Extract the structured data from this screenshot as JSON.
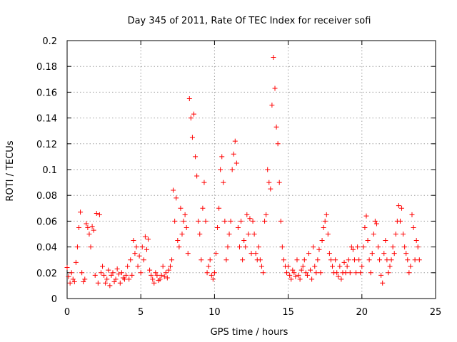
{
  "chart_data": {
    "type": "scatter",
    "title": "Day 345 of 2011, Rate Of TEC Index for receiver sofi",
    "xlabel": "GPS time / hours",
    "ylabel": "ROTI / TECUs",
    "xlim": [
      0,
      25
    ],
    "ylim": [
      0,
      0.2
    ],
    "x_ticks": [
      "0",
      "5",
      "10",
      "15",
      "20",
      "25"
    ],
    "y_ticks": [
      "0",
      "0.02",
      "0.04",
      "0.06",
      "0.08",
      "0.1",
      "0.12",
      "0.14",
      "0.16",
      "0.18",
      "0.2"
    ],
    "grid": true,
    "legend": "none",
    "marker": "+",
    "marker_color": "#ff0000",
    "series": [
      {
        "points": [
          [
            0.0,
            0.024
          ],
          [
            0.1,
            0.017
          ],
          [
            0.2,
            0.012
          ],
          [
            0.3,
            0.02
          ],
          [
            0.4,
            0.015
          ],
          [
            0.5,
            0.013
          ],
          [
            0.6,
            0.028
          ],
          [
            0.7,
            0.04
          ],
          [
            0.8,
            0.055
          ],
          [
            0.9,
            0.067
          ],
          [
            1.0,
            0.02
          ],
          [
            1.1,
            0.013
          ],
          [
            1.2,
            0.015
          ],
          [
            1.3,
            0.058
          ],
          [
            1.4,
            0.055
          ],
          [
            1.5,
            0.05
          ],
          [
            1.6,
            0.04
          ],
          [
            1.7,
            0.056
          ],
          [
            1.8,
            0.053
          ],
          [
            1.9,
            0.018
          ],
          [
            2.0,
            0.066
          ],
          [
            2.1,
            0.012
          ],
          [
            2.2,
            0.065
          ],
          [
            2.3,
            0.02
          ],
          [
            2.4,
            0.025
          ],
          [
            2.5,
            0.018
          ],
          [
            2.6,
            0.012
          ],
          [
            2.7,
            0.015
          ],
          [
            2.8,
            0.022
          ],
          [
            2.9,
            0.01
          ],
          [
            3.0,
            0.018
          ],
          [
            3.1,
            0.02
          ],
          [
            3.2,
            0.013
          ],
          [
            3.3,
            0.015
          ],
          [
            3.4,
            0.023
          ],
          [
            3.5,
            0.019
          ],
          [
            3.6,
            0.012
          ],
          [
            3.7,
            0.02
          ],
          [
            3.8,
            0.016
          ],
          [
            3.9,
            0.015
          ],
          [
            4.0,
            0.018
          ],
          [
            4.1,
            0.025
          ],
          [
            4.2,
            0.015
          ],
          [
            4.3,
            0.03
          ],
          [
            4.4,
            0.018
          ],
          [
            4.5,
            0.045
          ],
          [
            4.6,
            0.035
          ],
          [
            4.7,
            0.04
          ],
          [
            4.8,
            0.025
          ],
          [
            4.9,
            0.033
          ],
          [
            5.0,
            0.02
          ],
          [
            5.1,
            0.04
          ],
          [
            5.2,
            0.03
          ],
          [
            5.3,
            0.048
          ],
          [
            5.4,
            0.038
          ],
          [
            5.5,
            0.046
          ],
          [
            5.6,
            0.022
          ],
          [
            5.7,
            0.018
          ],
          [
            5.8,
            0.015
          ],
          [
            5.9,
            0.012
          ],
          [
            6.0,
            0.02
          ],
          [
            6.1,
            0.018
          ],
          [
            6.2,
            0.014
          ],
          [
            6.3,
            0.015
          ],
          [
            6.4,
            0.018
          ],
          [
            6.5,
            0.025
          ],
          [
            6.6,
            0.017
          ],
          [
            6.7,
            0.02
          ],
          [
            6.8,
            0.016
          ],
          [
            6.9,
            0.022
          ],
          [
            7.0,
            0.025
          ],
          [
            7.1,
            0.03
          ],
          [
            7.2,
            0.084
          ],
          [
            7.3,
            0.06
          ],
          [
            7.4,
            0.078
          ],
          [
            7.5,
            0.045
          ],
          [
            7.6,
            0.04
          ],
          [
            7.7,
            0.07
          ],
          [
            7.8,
            0.05
          ],
          [
            7.9,
            0.06
          ],
          [
            8.0,
            0.065
          ],
          [
            8.1,
            0.055
          ],
          [
            8.2,
            0.035
          ],
          [
            8.3,
            0.155
          ],
          [
            8.4,
            0.14
          ],
          [
            8.5,
            0.125
          ],
          [
            8.6,
            0.143
          ],
          [
            8.7,
            0.11
          ],
          [
            8.8,
            0.095
          ],
          [
            8.9,
            0.06
          ],
          [
            9.0,
            0.05
          ],
          [
            9.1,
            0.03
          ],
          [
            9.2,
            0.07
          ],
          [
            9.3,
            0.09
          ],
          [
            9.4,
            0.06
          ],
          [
            9.5,
            0.02
          ],
          [
            9.6,
            0.025
          ],
          [
            9.7,
            0.03
          ],
          [
            9.8,
            0.018
          ],
          [
            9.9,
            0.015
          ],
          [
            10.0,
            0.02
          ],
          [
            10.1,
            0.035
          ],
          [
            10.2,
            0.055
          ],
          [
            10.3,
            0.07
          ],
          [
            10.4,
            0.1
          ],
          [
            10.5,
            0.11
          ],
          [
            10.6,
            0.09
          ],
          [
            10.7,
            0.06
          ],
          [
            10.8,
            0.03
          ],
          [
            10.9,
            0.04
          ],
          [
            11.0,
            0.05
          ],
          [
            11.1,
            0.06
          ],
          [
            11.2,
            0.1
          ],
          [
            11.3,
            0.112
          ],
          [
            11.4,
            0.122
          ],
          [
            11.5,
            0.105
          ],
          [
            11.6,
            0.055
          ],
          [
            11.7,
            0.04
          ],
          [
            11.8,
            0.06
          ],
          [
            11.9,
            0.03
          ],
          [
            12.0,
            0.045
          ],
          [
            12.1,
            0.04
          ],
          [
            12.2,
            0.065
          ],
          [
            12.3,
            0.05
          ],
          [
            12.4,
            0.062
          ],
          [
            12.5,
            0.035
          ],
          [
            12.6,
            0.06
          ],
          [
            12.7,
            0.05
          ],
          [
            12.8,
            0.035
          ],
          [
            12.9,
            0.03
          ],
          [
            13.0,
            0.04
          ],
          [
            13.1,
            0.03
          ],
          [
            13.2,
            0.025
          ],
          [
            13.3,
            0.02
          ],
          [
            13.4,
            0.06
          ],
          [
            13.5,
            0.065
          ],
          [
            13.6,
            0.1
          ],
          [
            13.7,
            0.09
          ],
          [
            13.8,
            0.085
          ],
          [
            13.9,
            0.15
          ],
          [
            14.0,
            0.187
          ],
          [
            14.1,
            0.163
          ],
          [
            14.2,
            0.133
          ],
          [
            14.3,
            0.12
          ],
          [
            14.4,
            0.09
          ],
          [
            14.5,
            0.06
          ],
          [
            14.6,
            0.04
          ],
          [
            14.7,
            0.03
          ],
          [
            14.8,
            0.025
          ],
          [
            14.9,
            0.02
          ],
          [
            15.0,
            0.025
          ],
          [
            15.1,
            0.018
          ],
          [
            15.2,
            0.015
          ],
          [
            15.3,
            0.022
          ],
          [
            15.4,
            0.02
          ],
          [
            15.5,
            0.017
          ],
          [
            15.6,
            0.03
          ],
          [
            15.7,
            0.018
          ],
          [
            15.8,
            0.015
          ],
          [
            15.9,
            0.022
          ],
          [
            16.0,
            0.025
          ],
          [
            16.1,
            0.03
          ],
          [
            16.2,
            0.02
          ],
          [
            16.3,
            0.018
          ],
          [
            16.4,
            0.035
          ],
          [
            16.5,
            0.022
          ],
          [
            16.6,
            0.015
          ],
          [
            16.7,
            0.04
          ],
          [
            16.8,
            0.025
          ],
          [
            16.9,
            0.02
          ],
          [
            17.0,
            0.03
          ],
          [
            17.1,
            0.038
          ],
          [
            17.2,
            0.02
          ],
          [
            17.3,
            0.045
          ],
          [
            17.4,
            0.055
          ],
          [
            17.5,
            0.06
          ],
          [
            17.6,
            0.065
          ],
          [
            17.7,
            0.05
          ],
          [
            17.8,
            0.035
          ],
          [
            17.9,
            0.03
          ],
          [
            18.0,
            0.025
          ],
          [
            18.1,
            0.02
          ],
          [
            18.2,
            0.03
          ],
          [
            18.3,
            0.02
          ],
          [
            18.4,
            0.017
          ],
          [
            18.5,
            0.025
          ],
          [
            18.6,
            0.015
          ],
          [
            18.7,
            0.02
          ],
          [
            18.8,
            0.028
          ],
          [
            18.9,
            0.02
          ],
          [
            19.0,
            0.025
          ],
          [
            19.1,
            0.03
          ],
          [
            19.2,
            0.02
          ],
          [
            19.3,
            0.04
          ],
          [
            19.4,
            0.038
          ],
          [
            19.5,
            0.03
          ],
          [
            19.6,
            0.02
          ],
          [
            19.7,
            0.04
          ],
          [
            19.8,
            0.03
          ],
          [
            19.9,
            0.02
          ],
          [
            20.0,
            0.025
          ],
          [
            20.1,
            0.04
          ],
          [
            20.2,
            0.055
          ],
          [
            20.3,
            0.064
          ],
          [
            20.4,
            0.045
          ],
          [
            20.5,
            0.03
          ],
          [
            20.6,
            0.02
          ],
          [
            20.7,
            0.035
          ],
          [
            20.8,
            0.05
          ],
          [
            20.9,
            0.06
          ],
          [
            21.0,
            0.058
          ],
          [
            21.1,
            0.04
          ],
          [
            21.2,
            0.03
          ],
          [
            21.3,
            0.018
          ],
          [
            21.4,
            0.012
          ],
          [
            21.5,
            0.035
          ],
          [
            21.6,
            0.045
          ],
          [
            21.7,
            0.03
          ],
          [
            21.8,
            0.02
          ],
          [
            21.9,
            0.025
          ],
          [
            22.0,
            0.03
          ],
          [
            22.1,
            0.04
          ],
          [
            22.2,
            0.035
          ],
          [
            22.3,
            0.05
          ],
          [
            22.4,
            0.06
          ],
          [
            22.5,
            0.072
          ],
          [
            22.6,
            0.06
          ],
          [
            22.7,
            0.07
          ],
          [
            22.8,
            0.05
          ],
          [
            22.9,
            0.04
          ],
          [
            23.0,
            0.035
          ],
          [
            23.1,
            0.03
          ],
          [
            23.2,
            0.02
          ],
          [
            23.3,
            0.025
          ],
          [
            23.4,
            0.065
          ],
          [
            23.5,
            0.055
          ],
          [
            23.6,
            0.03
          ],
          [
            23.7,
            0.045
          ],
          [
            23.8,
            0.04
          ],
          [
            23.9,
            0.03
          ]
        ]
      }
    ]
  }
}
